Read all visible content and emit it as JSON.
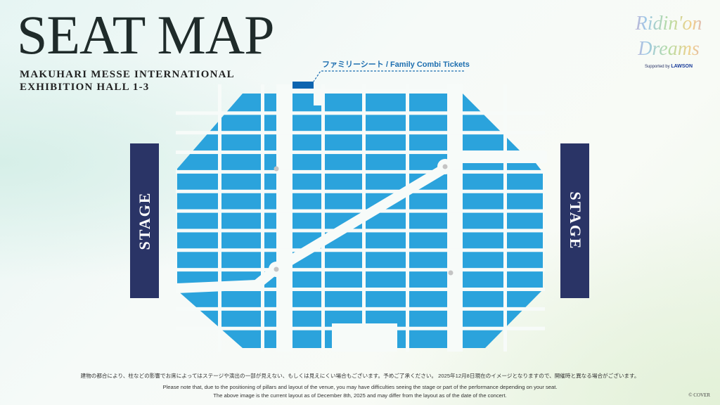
{
  "header": {
    "title": "SEAT MAP",
    "venue_line1": "MAKUHARI MESSE INTERNATIONAL",
    "venue_line2": "EXHIBITION HALL 1-3"
  },
  "logo": {
    "line1": "Ridin'on",
    "line2": "Dreams",
    "supported_by": "Supported by",
    "sponsor": "LAWSON"
  },
  "stages": {
    "left": "STAGE",
    "right": "STAGE"
  },
  "legend": {
    "family_label": "ファミリーシート / Family Combi Tickets"
  },
  "colors": {
    "seat_block": "#2ba3dc",
    "family_block": "#0d64b0",
    "stage": "#2a3466",
    "pillar": "#c4c4c4"
  },
  "footer": {
    "note_jp": "建物の都合により、柱などの影響でお席によってはステージや演出の一部が見えない、もしくは見えにくい場合もございます。予めご了承ください。 2025年12月8日現在のイメージとなりますので、開催時と異なる場合がございます。",
    "note_en1": "Please note that, due to the positioning of pillars and layout of the venue, you may have difficulties seeing the stage or part of the performance depending on your seat.",
    "note_en2": "The above image is the current layout as of December 8th, 2025 and may differ from the layout as of the date of the concert.",
    "copyright": "© COVER"
  }
}
